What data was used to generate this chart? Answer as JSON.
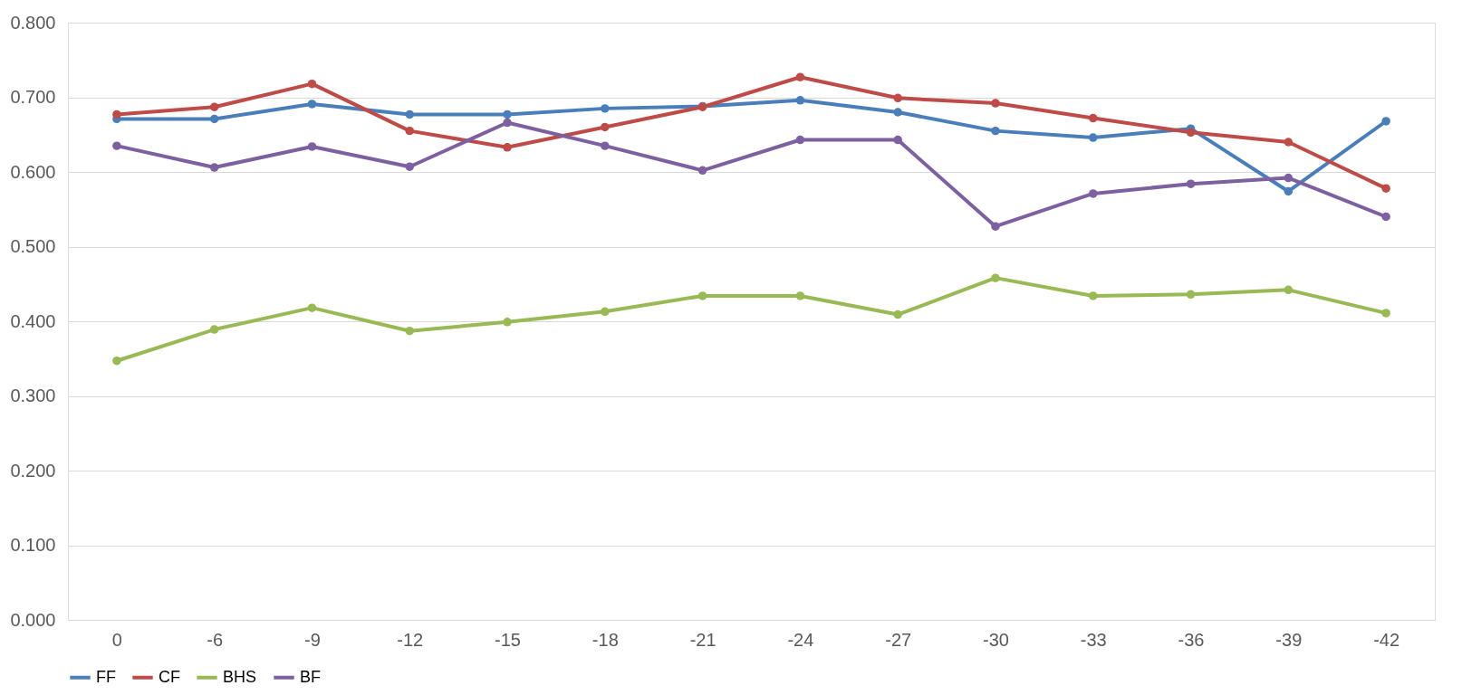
{
  "chart_data": {
    "type": "line",
    "categories": [
      "0",
      "-6",
      "-9",
      "-12",
      "-15",
      "-18",
      "-21",
      "-24",
      "-27",
      "-30",
      "-33",
      "-36",
      "-39",
      "-42"
    ],
    "series": [
      {
        "name": "FF",
        "color": "#4a7ebb",
        "values": [
          0.671,
          0.671,
          0.691,
          0.677,
          0.677,
          0.685,
          0.688,
          0.696,
          0.68,
          0.655,
          0.646,
          0.658,
          0.574,
          0.668
        ]
      },
      {
        "name": "CF",
        "color": "#be4b48",
        "values": [
          0.677,
          0.687,
          0.718,
          0.655,
          0.633,
          0.66,
          0.687,
          0.727,
          0.699,
          0.692,
          0.672,
          0.653,
          0.64,
          0.578
        ]
      },
      {
        "name": "BHS",
        "color": "#98b954",
        "values": [
          0.347,
          0.389,
          0.418,
          0.387,
          0.399,
          0.413,
          0.434,
          0.434,
          0.409,
          0.458,
          0.434,
          0.436,
          0.442,
          0.411
        ]
      },
      {
        "name": "BF",
        "color": "#7d60a0",
        "values": [
          0.635,
          0.606,
          0.634,
          0.607,
          0.666,
          0.635,
          0.602,
          0.643,
          0.643,
          0.527,
          0.571,
          0.584,
          0.592,
          0.54
        ]
      }
    ],
    "ylim": [
      0,
      0.8
    ],
    "yticks": [
      {
        "value": 0,
        "label": "0.000"
      },
      {
        "value": 0.1,
        "label": "0.100"
      },
      {
        "value": 0.2,
        "label": "0.200"
      },
      {
        "value": 0.3,
        "label": "0.300"
      },
      {
        "value": 0.4,
        "label": "0.400"
      },
      {
        "value": 0.5,
        "label": "0.500"
      },
      {
        "value": 0.6,
        "label": "0.600"
      },
      {
        "value": 0.7,
        "label": "0.700"
      },
      {
        "value": 0.8,
        "label": "0.800"
      }
    ],
    "grid": "y",
    "legend": "bottom",
    "marker": "circle",
    "line_style": "solid"
  }
}
